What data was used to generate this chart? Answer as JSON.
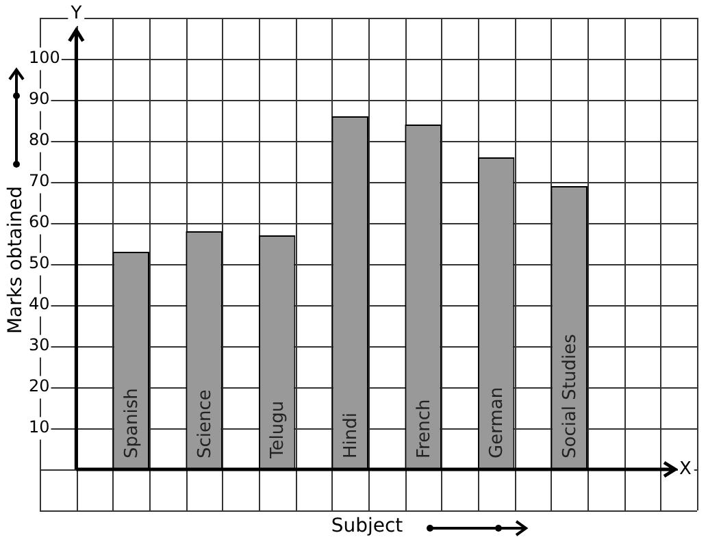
{
  "chart_data": {
    "type": "bar",
    "categories": [
      "Spanish",
      "Science",
      "Telugu",
      "Hindi",
      "French",
      "German",
      "Social Studies"
    ],
    "values": [
      53,
      58,
      57,
      86,
      84,
      76,
      69
    ],
    "color": "#999999",
    "xlabel": "Subject",
    "ylabel": "Marks obtained",
    "annotations": [
      "Y",
      "X"
    ],
    "ylim": [
      -10,
      110
    ],
    "yticks": [
      10,
      20,
      30,
      40,
      50,
      60,
      70,
      80,
      90,
      100
    ],
    "grid": true,
    "legend": false
  }
}
